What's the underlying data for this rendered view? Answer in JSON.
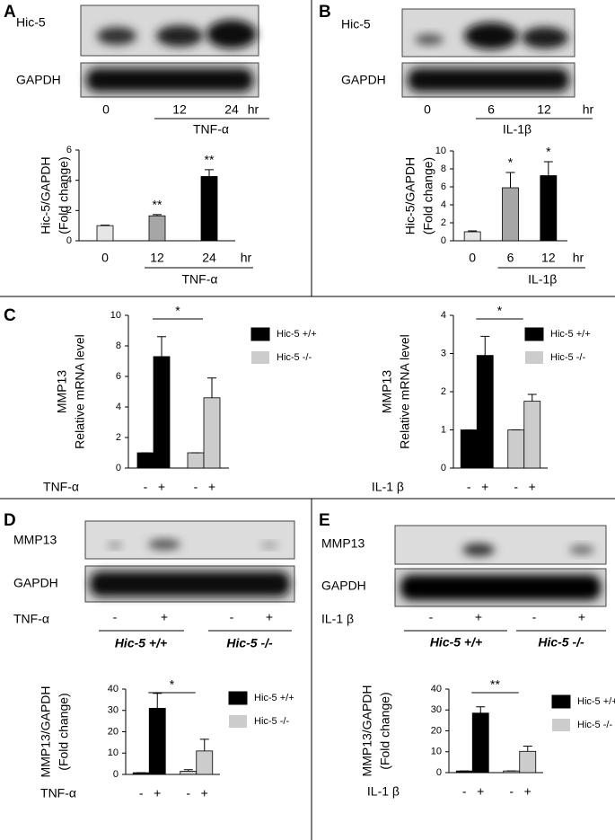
{
  "panels": [
    "A",
    "B",
    "C",
    "D",
    "E"
  ],
  "blots": [
    {
      "rows": [
        "Hic-5",
        "GAPDH"
      ],
      "lanes": [
        "0",
        "12",
        "24"
      ],
      "unit": "hr",
      "treatment": "TNF-α"
    },
    {
      "rows": [
        "Hic-5",
        "GAPDH"
      ],
      "lanes": [
        "0",
        "6",
        "12"
      ],
      "unit": "hr",
      "treatment": "IL-1β"
    },
    {
      "rows": [
        "MMP13",
        "GAPDH"
      ],
      "lanes": [
        "-",
        "+",
        "-",
        "+"
      ],
      "treatment": "TNF-α",
      "genotypes": [
        "Hic-5 +/+",
        "Hic-5 -/-"
      ]
    },
    {
      "rows": [
        "MMP13",
        "GAPDH"
      ],
      "lanes": [
        "-",
        "+",
        "-",
        "+"
      ],
      "treatment": "IL-1 β",
      "genotypes": [
        "Hic-5 +/+",
        "Hic-5 -/-"
      ]
    }
  ],
  "chart_data": [
    {
      "type": "bar",
      "ylabel": [
        "Hic-5/GAPDH",
        "(Fold change)"
      ],
      "categories": [
        "0",
        "12",
        "24"
      ],
      "x_unit": "hr",
      "xlabel": "TNF-α",
      "values": [
        1,
        1.65,
        4.25
      ],
      "errors": [
        0.03,
        0.08,
        0.45
      ],
      "colors": [
        "#e6e6e6",
        "#a6a6a6",
        "#000000"
      ],
      "annotations": [
        null,
        "**",
        "**"
      ],
      "ylim": [
        0,
        6
      ],
      "yticks": [
        0,
        2,
        4,
        6
      ]
    },
    {
      "type": "bar",
      "ylabel": [
        "Hic-5/GAPDH",
        "(Fold change)"
      ],
      "categories": [
        "0",
        "6",
        "12"
      ],
      "x_unit": "hr",
      "xlabel": "IL-1β",
      "values": [
        1,
        5.9,
        7.25
      ],
      "errors": [
        0.1,
        1.7,
        1.55
      ],
      "colors": [
        "#e6e6e6",
        "#a6a6a6",
        "#000000"
      ],
      "annotations": [
        null,
        "*",
        "*"
      ],
      "ylim": [
        0,
        10
      ],
      "yticks": [
        0,
        2,
        4,
        6,
        8,
        10
      ]
    },
    {
      "type": "grouped",
      "ylabel": [
        "MMP13",
        "Relative mRNA level"
      ],
      "categories": [
        "-",
        "+"
      ],
      "xlabel": "TNF-α",
      "significance": "*",
      "series": [
        {
          "name": "Hic-5 +/+",
          "color": "#000000",
          "values": [
            1,
            7.3
          ],
          "errors": [
            0,
            1.3
          ]
        },
        {
          "name": "Hic-5 -/-",
          "color": "#cccccc",
          "values": [
            1,
            4.6
          ],
          "errors": [
            0,
            1.3
          ]
        }
      ],
      "ylim": [
        0,
        10
      ],
      "yticks": [
        0,
        2,
        4,
        6,
        8,
        10
      ]
    },
    {
      "type": "grouped",
      "ylabel": [
        "MMP13",
        "Relative mRNA level"
      ],
      "categories": [
        "-",
        "+"
      ],
      "xlabel": "IL-1 β",
      "significance": "*",
      "series": [
        {
          "name": "Hic-5 +/+",
          "color": "#000000",
          "values": [
            1,
            2.95
          ],
          "errors": [
            0,
            0.5
          ]
        },
        {
          "name": "Hic-5 -/-",
          "color": "#cccccc",
          "values": [
            1,
            1.75
          ],
          "errors": [
            0,
            0.18
          ]
        }
      ],
      "ylim": [
        0,
        4
      ],
      "yticks": [
        0,
        1,
        2,
        3,
        4
      ]
    },
    {
      "type": "grouped",
      "ylabel": [
        "MMP13/GAPDH",
        "(Fold change)"
      ],
      "categories": [
        "-",
        "+"
      ],
      "xlabel": "TNF-α",
      "significance": "*",
      "series": [
        {
          "name": "Hic-5 +/+",
          "color": "#000000",
          "values": [
            0.8,
            31
          ],
          "errors": [
            0,
            7
          ]
        },
        {
          "name": "Hic-5 -/-",
          "color": "#cccccc",
          "values": [
            1.5,
            11
          ],
          "errors": [
            0.7,
            5.5
          ]
        }
      ],
      "ylim": [
        0,
        40
      ],
      "yticks": [
        0,
        10,
        20,
        30,
        40
      ]
    },
    {
      "type": "grouped",
      "ylabel": [
        "MMP13/GAPDH",
        "(Fold change)"
      ],
      "categories": [
        "-",
        "+"
      ],
      "xlabel": "IL-1 β",
      "significance": "**",
      "series": [
        {
          "name": "Hic-5 +/+",
          "color": "#000000",
          "values": [
            0.8,
            28.5
          ],
          "errors": [
            0,
            3
          ]
        },
        {
          "name": "Hic-5 -/-",
          "color": "#cccccc",
          "values": [
            0.8,
            10.2
          ],
          "errors": [
            0,
            2.5
          ]
        }
      ],
      "ylim": [
        0,
        40
      ],
      "yticks": [
        0,
        10,
        20,
        30,
        40
      ]
    }
  ]
}
